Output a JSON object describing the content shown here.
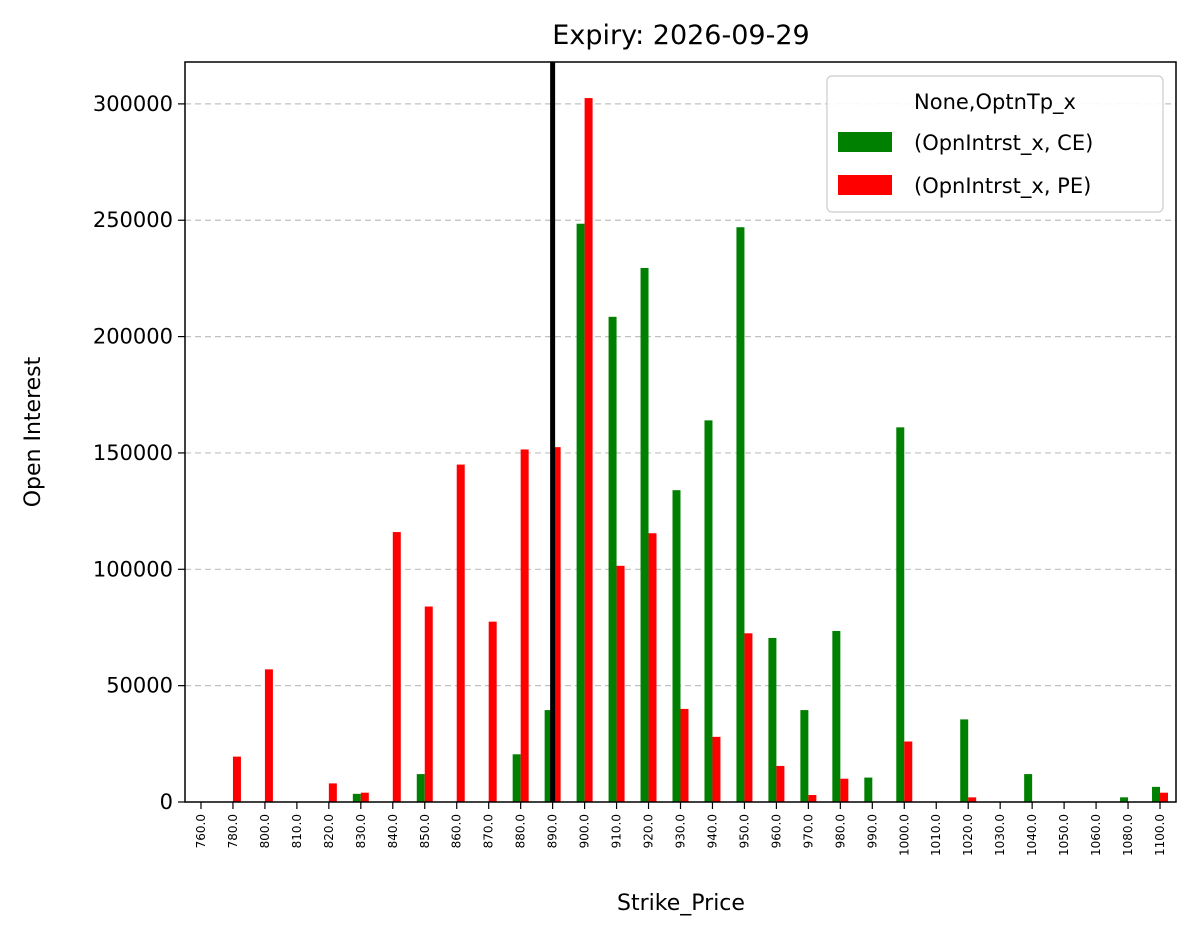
{
  "chart_data": {
    "type": "bar",
    "title": "Expiry: 2026-09-29",
    "xlabel": "Strike_Price",
    "ylabel": "Open Interest",
    "ylim": [
      0,
      318000
    ],
    "yticks": [
      0,
      50000,
      100000,
      150000,
      200000,
      250000,
      300000
    ],
    "grid": "y-dashed",
    "legend_placement": "top-right",
    "legend_title": "None,OptnTp_x",
    "marker_line_at": "890.0",
    "marker_line_color": "#000000",
    "categories": [
      "760.0",
      "780.0",
      "800.0",
      "810.0",
      "820.0",
      "830.0",
      "840.0",
      "850.0",
      "860.0",
      "870.0",
      "880.0",
      "890.0",
      "900.0",
      "910.0",
      "920.0",
      "930.0",
      "940.0",
      "950.0",
      "960.0",
      "970.0",
      "980.0",
      "990.0",
      "1000.0",
      "1010.0",
      "1020.0",
      "1030.0",
      "1040.0",
      "1050.0",
      "1060.0",
      "1080.0",
      "1100.0"
    ],
    "series": [
      {
        "name": "(OpnIntrst_x, CE)",
        "color": "#008000",
        "values": [
          0,
          0,
          0,
          0,
          0,
          3500,
          0,
          12000,
          0,
          0,
          20500,
          39500,
          248500,
          208500,
          229500,
          134000,
          164000,
          247000,
          70500,
          39500,
          73500,
          10500,
          161000,
          0,
          35500,
          0,
          12000,
          0,
          0,
          2000,
          6500
        ]
      },
      {
        "name": "(OpnIntrst_x, PE)",
        "color": "#ff0000",
        "values": [
          0,
          19500,
          57000,
          0,
          8000,
          4000,
          116000,
          84000,
          145000,
          77500,
          151500,
          152500,
          302500,
          101500,
          115500,
          40000,
          28000,
          72500,
          15500,
          3000,
          10000,
          0,
          26000,
          0,
          2000,
          0,
          0,
          0,
          0,
          0,
          4000
        ]
      }
    ]
  }
}
